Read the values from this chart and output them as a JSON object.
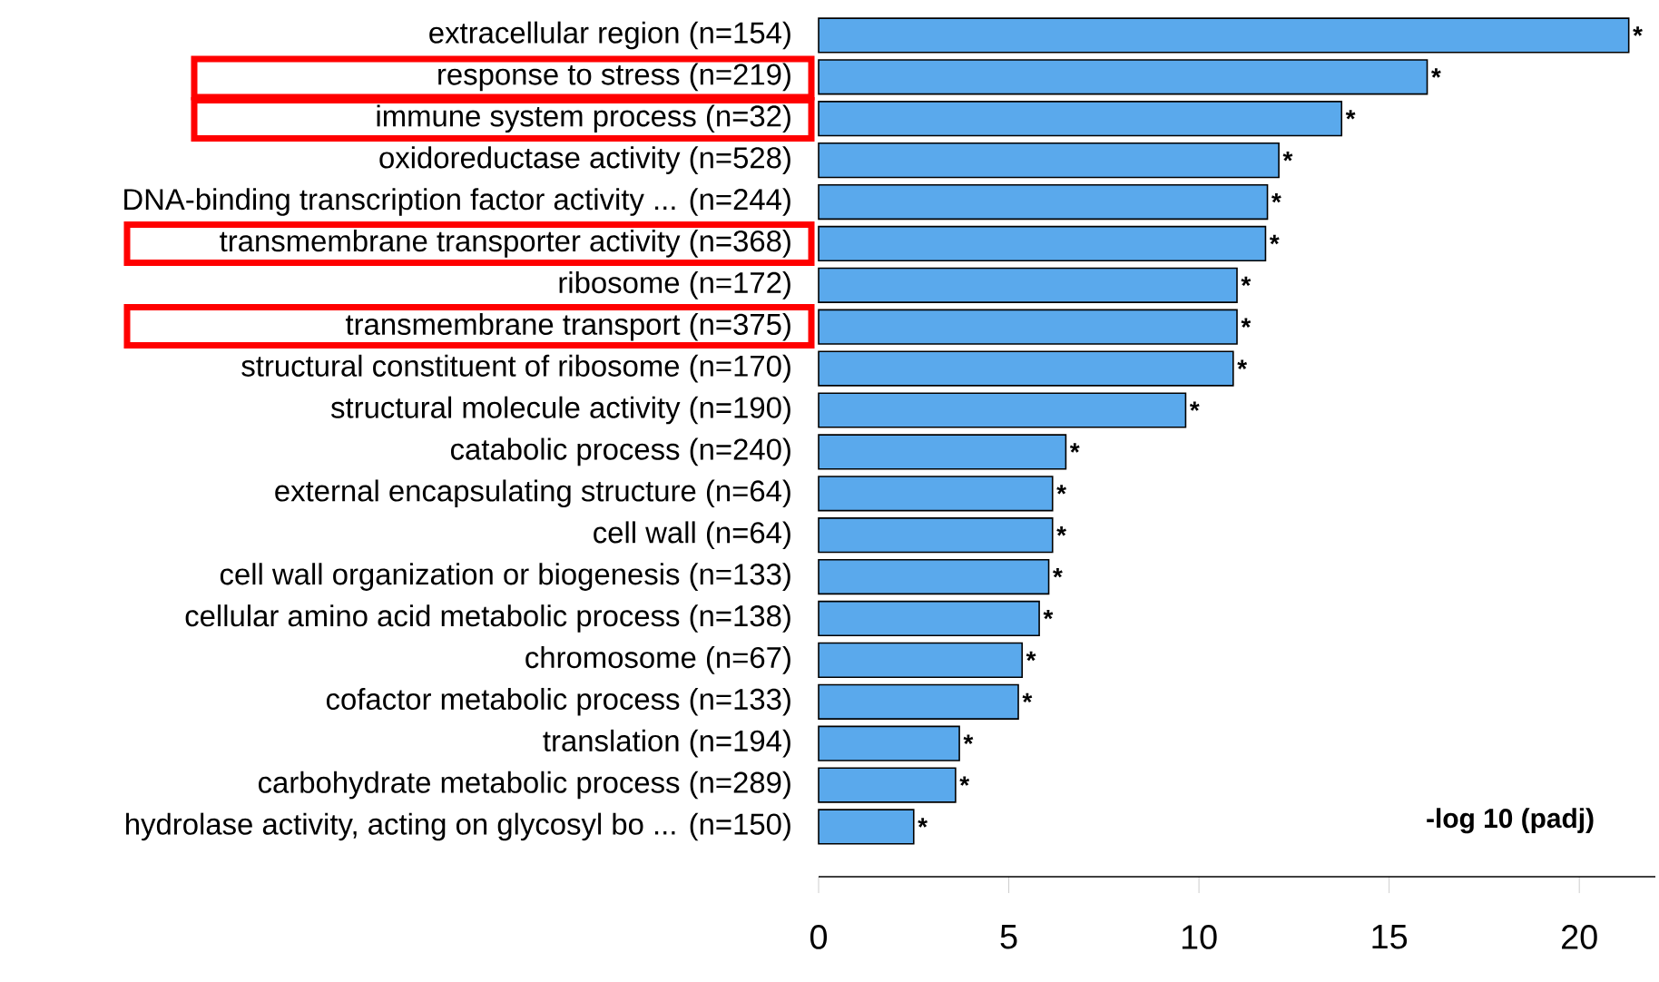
{
  "chart_data": {
    "type": "bar",
    "orientation": "horizontal",
    "xlabel": "-log 10 (padj)",
    "categories": [
      "extracellular region (n=154)",
      "response to stress (n=219)",
      "immune system process (n=32)",
      "oxidoreductase activity (n=528)",
      "DNA-binding transcription factor activity ... (n=244)",
      "transmembrane transporter activity (n=368)",
      "ribosome (n=172)",
      "transmembrane transport (n=375)",
      "structural constituent of ribosome (n=170)",
      "structural molecule activity (n=190)",
      "catabolic process (n=240)",
      "external encapsulating structure (n=64)",
      "cell wall (n=64)",
      "cell wall organization or biogenesis (n=133)",
      "cellular amino acid metabolic process (n=138)",
      "chromosome (n=67)",
      "cofactor metabolic process (n=133)",
      "translation (n=194)",
      "carbohydrate metabolic process (n=289)",
      "hydrolase activity, acting on glycosyl bo ... (n=150)"
    ],
    "values": [
      21.3,
      16.0,
      13.75,
      12.1,
      11.8,
      11.75,
      11.0,
      11.0,
      10.9,
      9.65,
      6.5,
      6.15,
      6.15,
      6.05,
      5.8,
      5.35,
      5.25,
      3.7,
      3.6,
      2.5
    ],
    "value_labels": [
      "*",
      "*",
      "*",
      "*",
      "*",
      "*",
      "*",
      "*",
      "*",
      "*",
      "*",
      "*",
      "*",
      "*",
      "*",
      "*",
      "*",
      "*",
      "*",
      "*"
    ],
    "color": "#5aa9ec",
    "xlim": [
      0,
      22
    ],
    "xticks": [
      0,
      5,
      10,
      15,
      20
    ]
  }
}
